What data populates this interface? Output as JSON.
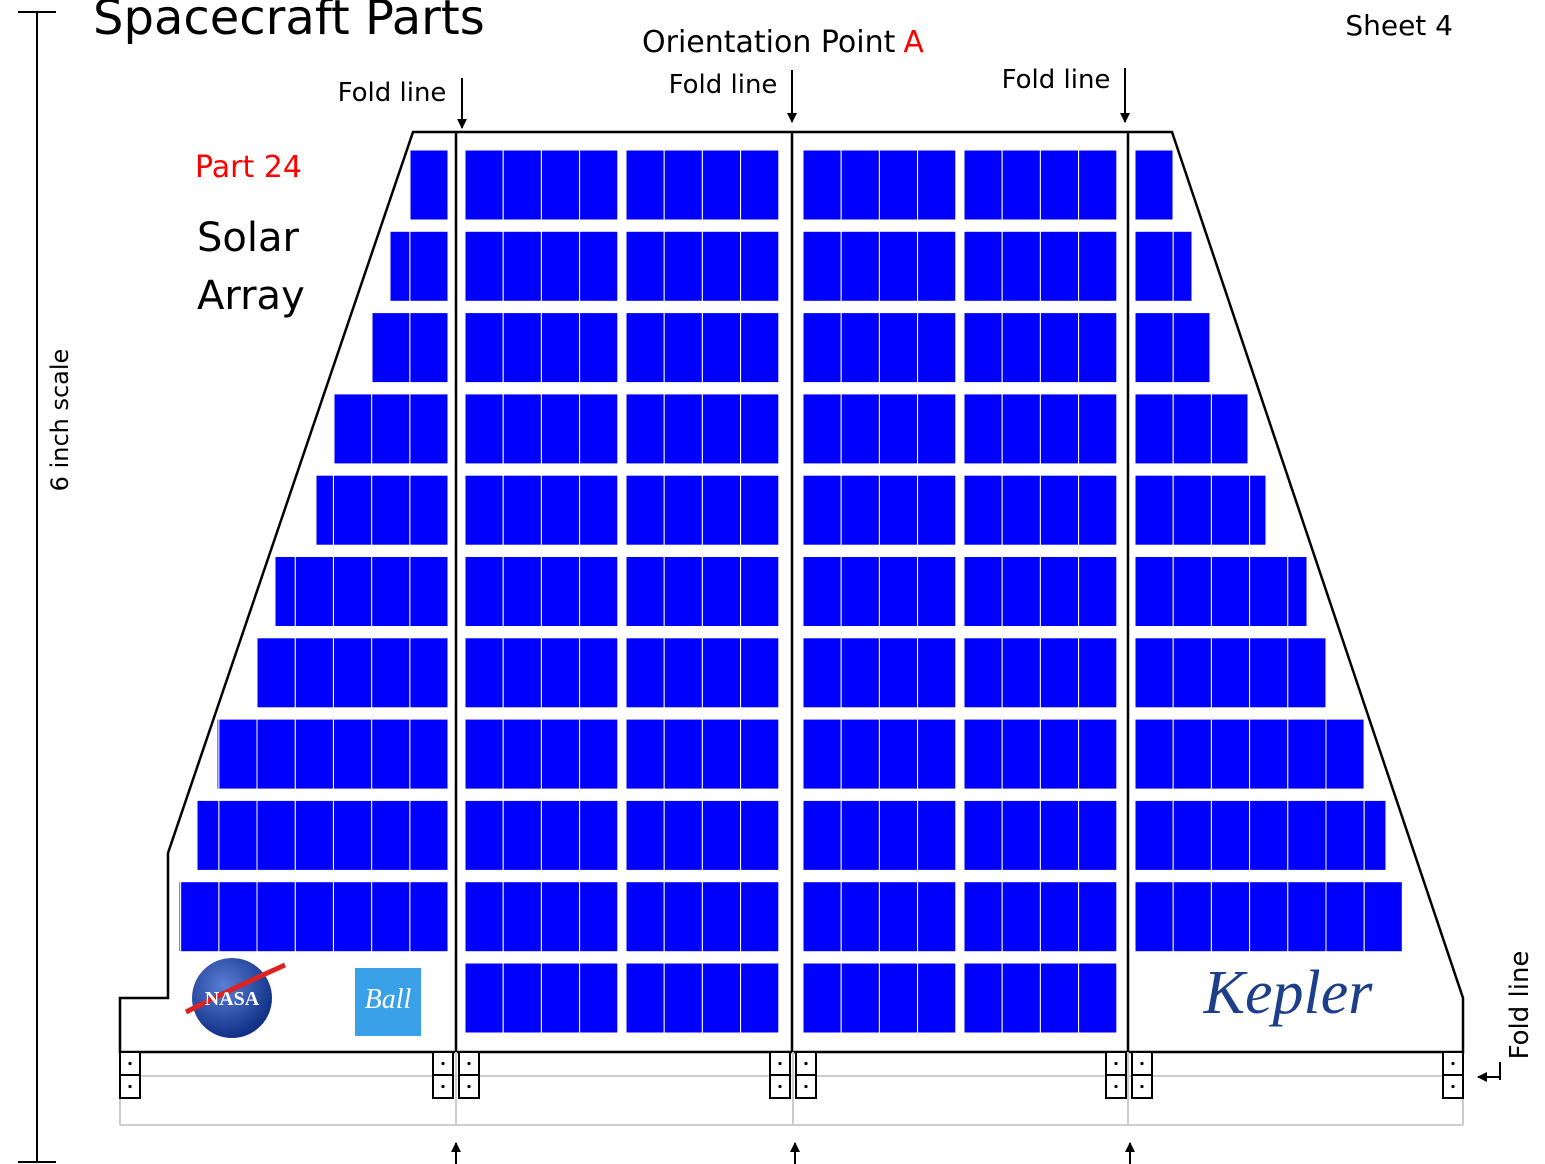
{
  "header": {
    "title": "Spacecraft Parts",
    "orientation": {
      "text": "Orientation Point",
      "point": "A"
    },
    "sheet": "Sheet 4"
  },
  "part": {
    "number": "Part 24",
    "name": [
      "Solar",
      "Array"
    ]
  },
  "scale": "6 inch scale",
  "fold_lines": [
    "Fold line",
    "Fold line",
    "Fold line",
    "Fold line"
  ],
  "logos": [
    "NASA",
    "Ball",
    "Kepler"
  ]
}
